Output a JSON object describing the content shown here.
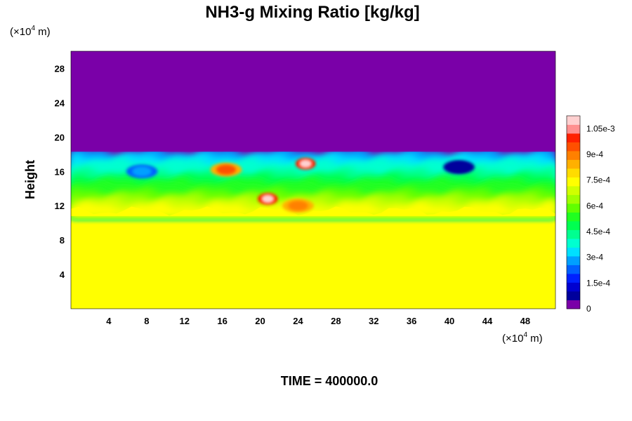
{
  "chart_data": {
    "type": "heatmap",
    "title": "NH3-g Mixing Ratio [kg/kg]",
    "ylabel": "Height",
    "xlabel": "",
    "x_unit_prefix": "(×10",
    "x_unit_exp": "4",
    "x_unit_suffix": " m)",
    "y_unit_prefix": "(×10",
    "y_unit_exp": "4",
    "y_unit_suffix": " m)",
    "xlim": [
      0,
      51.2
    ],
    "ylim": [
      0,
      30
    ],
    "x_ticks": [
      4,
      8,
      12,
      16,
      20,
      24,
      28,
      32,
      36,
      40,
      44,
      48
    ],
    "x_tick_labels": [
      "4",
      "8",
      "12",
      "16",
      "20",
      "24",
      "28",
      "32",
      "36",
      "40",
      "44",
      "48"
    ],
    "y_ticks": [
      4,
      8,
      12,
      16,
      20,
      24,
      28
    ],
    "y_tick_labels": [
      "4",
      "8",
      "12",
      "16",
      "20",
      "24",
      "28"
    ],
    "colorbar": {
      "min": 0,
      "max": 0.001125,
      "levels": 30,
      "ticks": [
        0,
        0.00015,
        0.0003,
        0.00045,
        0.0006,
        0.00075,
        0.0009,
        0.00105
      ],
      "tick_labels": [
        "0",
        "1.5e-4",
        "3e-4",
        "4.5e-4",
        "6e-4",
        "7.5e-4",
        "9e-4",
        "1.05e-3"
      ],
      "colors": [
        "#7a00a8",
        "#00009c",
        "#0000d0",
        "#0020ff",
        "#0060ff",
        "#00a0ff",
        "#00e0ff",
        "#00ffd0",
        "#00ff90",
        "#00ff50",
        "#20ff20",
        "#60ff00",
        "#a0ff00",
        "#d0ff00",
        "#ffff00",
        "#ffdc00",
        "#ffb000",
        "#ff8000",
        "#ff5000",
        "#ff2000",
        "#ff9090",
        "#ffd0d0"
      ]
    },
    "layers": [
      {
        "name": "lower layer",
        "y_range": [
          0,
          10.8
        ],
        "value": 0.00076
      },
      {
        "name": "turbulent band",
        "y_range": [
          10.8,
          18.3
        ],
        "value_range": [
          0.00015,
          0.00102
        ]
      },
      {
        "name": "upper layer",
        "y_range": [
          18.3,
          30
        ],
        "value": 0
      }
    ],
    "features": [
      {
        "x": 16.4,
        "y": 16.2,
        "value": 0.00095
      },
      {
        "x": 20.8,
        "y": 12.8,
        "value": 0.00108
      },
      {
        "x": 24.8,
        "y": 16.9,
        "value": 0.0011
      },
      {
        "x": 24.0,
        "y": 12.0,
        "value": 0.00092
      },
      {
        "x": 7.5,
        "y": 16.0,
        "value": 0.00028
      },
      {
        "x": 41.0,
        "y": 16.5,
        "value": 8e-05
      }
    ],
    "time_label": "TIME = 400000.0"
  }
}
